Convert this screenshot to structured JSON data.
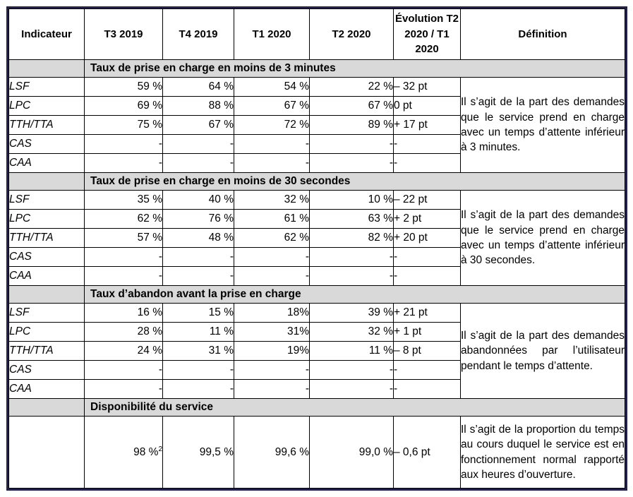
{
  "header": {
    "columns": [
      "Indicateur",
      "T3 2019",
      "T4 2019",
      "T1 2020",
      "T2 2020",
      "Évolution T2 2020 / T1 2020",
      "Définition"
    ]
  },
  "sections": [
    {
      "title": "Taux de prise en charge en moins de 3 minutes",
      "rows": [
        {
          "label": "LSF",
          "values": [
            "59 %",
            "64 %",
            "54 %",
            "22 %"
          ],
          "evolution": "– 32 pt"
        },
        {
          "label": "LPC",
          "values": [
            "69 %",
            "88 %",
            "67 %",
            "67 %"
          ],
          "evolution": "0 pt"
        },
        {
          "label": "TTH/TTA",
          "values": [
            "75 %",
            "67 %",
            "72 %",
            "89 %"
          ],
          "evolution": "+ 17 pt"
        },
        {
          "label": "CAS",
          "values": [
            "-",
            "-",
            "-",
            "-"
          ],
          "evolution": "-"
        },
        {
          "label": "CAA",
          "values": [
            "-",
            "-",
            "-",
            "-"
          ],
          "evolution": "-"
        }
      ],
      "definition": "Il s’agit de la part des demandes que le service prend en charge avec un temps d’attente inférieur à 3 minutes."
    },
    {
      "title": "Taux de prise en charge en moins de 30 secondes",
      "rows": [
        {
          "label": "LSF",
          "values": [
            "35 %",
            "40 %",
            "32 %",
            "10 %"
          ],
          "evolution": "– 22 pt"
        },
        {
          "label": "LPC",
          "values": [
            "62 %",
            "76 %",
            "61 %",
            "63 %"
          ],
          "evolution": "+ 2 pt"
        },
        {
          "label": "TTH/TTA",
          "values": [
            "57 %",
            "48 %",
            "62 %",
            "82 %"
          ],
          "evolution": "+ 20 pt"
        },
        {
          "label": "CAS",
          "values": [
            "-",
            "-",
            "-",
            "-"
          ],
          "evolution": "-"
        },
        {
          "label": "CAA",
          "values": [
            "-",
            "-",
            "-",
            "-"
          ],
          "evolution": "-"
        }
      ],
      "definition": "Il s’agit de la part des demandes que le service prend en charge avec un temps d’attente inférieur à 30 secondes."
    },
    {
      "title": "Taux d’abandon avant la prise en charge",
      "rows": [
        {
          "label": "LSF",
          "values": [
            "16 %",
            "15 %",
            "18%",
            "39 %"
          ],
          "evolution": "+ 21 pt"
        },
        {
          "label": "LPC",
          "values": [
            "28 %",
            "11 %",
            "31%",
            "32 %"
          ],
          "evolution": "+ 1 pt"
        },
        {
          "label": "TTH/TTA",
          "values": [
            "24 %",
            "31 %",
            "19%",
            "11 %"
          ],
          "evolution": "– 8 pt"
        },
        {
          "label": "CAS",
          "values": [
            "-",
            "-",
            "-",
            "-"
          ],
          "evolution": "-"
        },
        {
          "label": "CAA",
          "values": [
            "-",
            "-",
            "-",
            "-"
          ],
          "evolution": "-"
        }
      ],
      "definition": "Il s’agit de la part des demandes abandonnées par l’utilisateur pendant le temps d’attente."
    },
    {
      "title": "Disponibilité du service",
      "rows": [
        {
          "label": "",
          "values": [
            "98 %²",
            "99,5 %",
            "99,6 %",
            "99,0 %"
          ],
          "evolution": "– 0,6 pt"
        }
      ],
      "definition": "Il s’agit de la proportion du temps au cours duquel le service est en fonctionnement normal rapporté aux heures d’ouverture."
    }
  ],
  "colors": {
    "section_band_background": "#d9d9d9",
    "outer_border": "#21214a",
    "grid_lines": "#000000",
    "text": "#000000"
  }
}
